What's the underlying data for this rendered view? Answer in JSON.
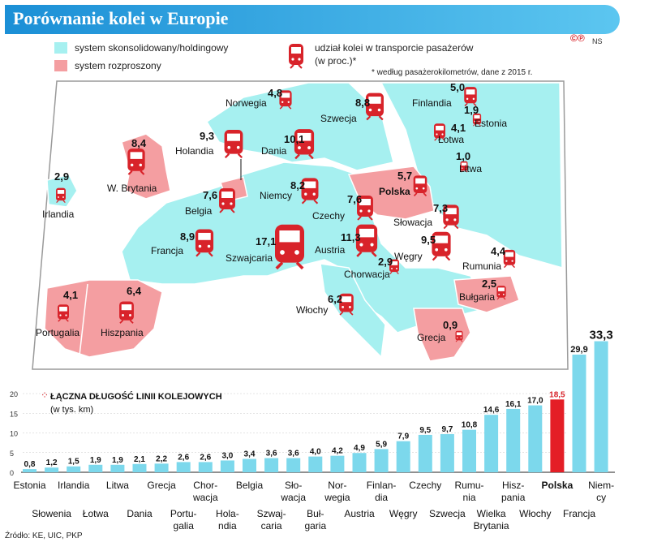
{
  "header": {
    "title": "Porównanie kolei w Europie",
    "copyright": "©℗",
    "credit": "NS"
  },
  "legend": {
    "consolidated": "system skonsolidowany/holdingowy",
    "dispersed": "system rozproszony",
    "share_line1": "udział kolei w transporcie pasażerów",
    "share_line2": "(w proc.)*",
    "note": "* według pasażerokilometrów, dane z 2015 r."
  },
  "colors": {
    "consolidated": "#a6f0f0",
    "dispersed": "#f49ea1",
    "bar": "#7cd8ec",
    "bar_highlight": "#e41e26",
    "title_bar": "#1b8fd6",
    "train": "#d8232a"
  },
  "map_countries": [
    {
      "name": "Norwegia",
      "share": "4,8",
      "system": "consolidated"
    },
    {
      "name": "Szwecja",
      "share": "8,8",
      "system": "consolidated"
    },
    {
      "name": "Finlandia",
      "share": "5,0",
      "system": "consolidated"
    },
    {
      "name": "Estonia",
      "share": "1,9",
      "system": "consolidated"
    },
    {
      "name": "Łotwa",
      "share": "4,1",
      "system": "consolidated"
    },
    {
      "name": "Litwa",
      "share": "1,0",
      "system": "consolidated"
    },
    {
      "name": "Holandia",
      "share": "9,3",
      "system": "dispersed"
    },
    {
      "name": "Dania",
      "share": "10,1",
      "system": "consolidated"
    },
    {
      "name": "W. Brytania",
      "share": "8,4",
      "system": "dispersed"
    },
    {
      "name": "Irlandia",
      "share": "2,9",
      "system": "consolidated"
    },
    {
      "name": "Niemcy",
      "share": "8,2",
      "system": "consolidated"
    },
    {
      "name": "Polska",
      "share": "5,7",
      "system": "dispersed"
    },
    {
      "name": "Belgia",
      "share": "7,6",
      "system": "consolidated"
    },
    {
      "name": "Czechy",
      "share": "7,6",
      "system": "consolidated"
    },
    {
      "name": "Słowacja",
      "share": "7,3",
      "system": "consolidated"
    },
    {
      "name": "Francja",
      "share": "8,9",
      "system": "consolidated"
    },
    {
      "name": "Szwajcaria",
      "share": "17,1",
      "system": "consolidated"
    },
    {
      "name": "Austria",
      "share": "11,3",
      "system": "consolidated"
    },
    {
      "name": "Węgry",
      "share": "9,5",
      "system": "consolidated"
    },
    {
      "name": "Rumunia",
      "share": "4,4",
      "system": "consolidated"
    },
    {
      "name": "Chorwacja",
      "share": "2,9",
      "system": "consolidated"
    },
    {
      "name": "Bułgaria",
      "share": "2,5",
      "system": "dispersed"
    },
    {
      "name": "Włochy",
      "share": "6,2",
      "system": "consolidated"
    },
    {
      "name": "Portugalia",
      "share": "4,1",
      "system": "dispersed"
    },
    {
      "name": "Hiszpania",
      "share": "6,4",
      "system": "dispersed"
    },
    {
      "name": "Grecja",
      "share": "0,9",
      "system": "dispersed"
    }
  ],
  "chart_data": {
    "type": "bar",
    "title": "ŁĄCZNA DŁUGOŚĆ LINII KOLEJOWYCH",
    "subtitle": "(w tys. km)",
    "categories": [
      "Estonia",
      "Słowenia",
      "Irlandia",
      "Łotwa",
      "Litwa",
      "Dania",
      "Grecja",
      "Portugalia",
      "Chorwacja",
      "Holandia",
      "Belgia",
      "Szwajcaria",
      "Słowacja",
      "Bułgaria",
      "Norwegia",
      "Austria",
      "Finlandia",
      "Węgry",
      "Czechy",
      "Szwecja",
      "Rumunia",
      "Wielka Brytania",
      "Hiszpania",
      "Włochy",
      "Polska",
      "Francja",
      "Niemcy"
    ],
    "category_labels": [
      [
        "Estonia"
      ],
      [
        "Słowenia"
      ],
      [
        "Irlandia"
      ],
      [
        "Łotwa"
      ],
      [
        "Litwa"
      ],
      [
        "Dania"
      ],
      [
        "Grecja"
      ],
      [
        "Portu-",
        "galia"
      ],
      [
        "Chor-",
        "wacja"
      ],
      [
        "Hola-",
        "ndia"
      ],
      [
        "Belgia"
      ],
      [
        "Szwaj-",
        "caria"
      ],
      [
        "Sło-",
        "wacja"
      ],
      [
        "Buł-",
        "garia"
      ],
      [
        "Nor-",
        "wegia"
      ],
      [
        "Austria"
      ],
      [
        "Finlan-",
        "dia"
      ],
      [
        "Węgry"
      ],
      [
        "Czechy"
      ],
      [
        "Szwecja"
      ],
      [
        "Rumu-",
        "nia"
      ],
      [
        "Wielka",
        "Brytania"
      ],
      [
        "Hisz-",
        "pania"
      ],
      [
        "Włochy"
      ],
      [
        "Polska"
      ],
      [
        "Francja"
      ],
      [
        "Niem-",
        "cy"
      ]
    ],
    "value_labels": [
      "0,8",
      "1,2",
      "1,5",
      "1,9",
      "1,9",
      "2,1",
      "2,2",
      "2,6",
      "2,6",
      "3,0",
      "3,4",
      "3,6",
      "3,6",
      "4,0",
      "4,2",
      "4,9",
      "5,9",
      "7,9",
      "9,5",
      "9,7",
      "10,8",
      "14,6",
      "16,1",
      "17,0",
      "18,5",
      "29,9",
      "33,3"
    ],
    "values": [
      0.8,
      1.2,
      1.5,
      1.9,
      1.9,
      2.1,
      2.2,
      2.6,
      2.6,
      3.0,
      3.4,
      3.6,
      3.6,
      4.0,
      4.2,
      4.9,
      5.9,
      7.9,
      9.5,
      9.7,
      10.8,
      14.6,
      16.1,
      17.0,
      18.5,
      29.9,
      33.3
    ],
    "highlight": "Polska",
    "yticks": [
      "0",
      "5",
      "10",
      "15",
      "20"
    ],
    "ylim": [
      0,
      20
    ]
  },
  "source": "Źródło: KE, UIC, PKP"
}
